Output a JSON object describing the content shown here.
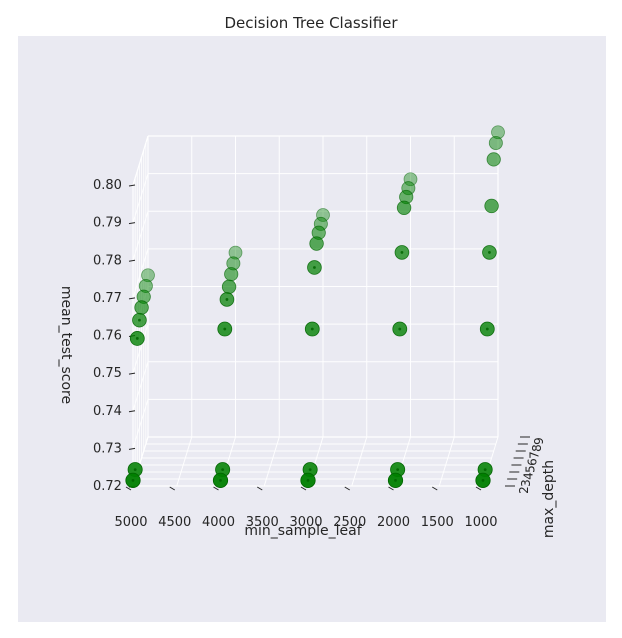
{
  "chart_data": {
    "type": "scatter",
    "title": "Decision Tree Classifier",
    "xlabel": "min_sample_leaf",
    "ylabel": "max_depth",
    "zlabel": "mean_test_score",
    "x_tick_labels": [
      "5000",
      "4500",
      "4000",
      "3500",
      "3000",
      "2500",
      "2000",
      "1500",
      "1000"
    ],
    "y_tick_labels": [
      "2",
      "3",
      "4",
      "5",
      "6",
      "7",
      "8",
      "9"
    ],
    "z_tick_labels": [
      "0.72",
      "0.73",
      "0.74",
      "0.75",
      "0.76",
      "0.77",
      "0.78",
      "0.79",
      "0.80"
    ],
    "xlim": [
      5000,
      1000
    ],
    "ylim": [
      2,
      9
    ],
    "zlim": [
      0.72,
      0.8
    ],
    "grid": true,
    "colors": {
      "pane": "#eaeaf2",
      "grid": "#ffffff",
      "marker": "#008000",
      "marker_dark": "#006400",
      "text": "#262626"
    },
    "series": [
      {
        "points": [
          {
            "x": 5000,
            "y": 2,
            "z": 0.7215
          },
          {
            "x": 5000,
            "y": 3,
            "z": 0.7225
          },
          {
            "x": 5000,
            "y": 4,
            "z": 0.7555
          },
          {
            "x": 5000,
            "y": 5,
            "z": 0.7585
          },
          {
            "x": 5000,
            "y": 6,
            "z": 0.76
          },
          {
            "x": 5000,
            "y": 7,
            "z": 0.761
          },
          {
            "x": 5000,
            "y": 8,
            "z": 0.762
          },
          {
            "x": 5000,
            "y": 9,
            "z": 0.763
          },
          {
            "x": 4000,
            "y": 2,
            "z": 0.7215
          },
          {
            "x": 4000,
            "y": 3,
            "z": 0.7225
          },
          {
            "x": 4000,
            "y": 4,
            "z": 0.758
          },
          {
            "x": 4000,
            "y": 5,
            "z": 0.764
          },
          {
            "x": 4000,
            "y": 6,
            "z": 0.7655
          },
          {
            "x": 4000,
            "y": 7,
            "z": 0.767
          },
          {
            "x": 4000,
            "y": 8,
            "z": 0.768
          },
          {
            "x": 4000,
            "y": 9,
            "z": 0.769
          },
          {
            "x": 3000,
            "y": 2,
            "z": 0.7215
          },
          {
            "x": 3000,
            "y": 3,
            "z": 0.7225
          },
          {
            "x": 3000,
            "y": 4,
            "z": 0.758
          },
          {
            "x": 3000,
            "y": 5,
            "z": 0.7725
          },
          {
            "x": 3000,
            "y": 6,
            "z": 0.777
          },
          {
            "x": 3000,
            "y": 7,
            "z": 0.778
          },
          {
            "x": 3000,
            "y": 8,
            "z": 0.7785
          },
          {
            "x": 3000,
            "y": 9,
            "z": 0.779
          },
          {
            "x": 2000,
            "y": 2,
            "z": 0.7215
          },
          {
            "x": 2000,
            "y": 3,
            "z": 0.7225
          },
          {
            "x": 2000,
            "y": 4,
            "z": 0.758
          },
          {
            "x": 2000,
            "y": 5,
            "z": 0.7765
          },
          {
            "x": 2000,
            "y": 6,
            "z": 0.7865
          },
          {
            "x": 2000,
            "y": 7,
            "z": 0.7875
          },
          {
            "x": 2000,
            "y": 8,
            "z": 0.788
          },
          {
            "x": 2000,
            "y": 9,
            "z": 0.7885
          },
          {
            "x": 1000,
            "y": 2,
            "z": 0.7215
          },
          {
            "x": 1000,
            "y": 3,
            "z": 0.7225
          },
          {
            "x": 1000,
            "y": 4,
            "z": 0.758
          },
          {
            "x": 1000,
            "y": 5,
            "z": 0.7765
          },
          {
            "x": 1000,
            "y": 6,
            "z": 0.787
          },
          {
            "x": 1000,
            "y": 7,
            "z": 0.7975
          },
          {
            "x": 1000,
            "y": 8,
            "z": 0.8
          },
          {
            "x": 1000,
            "y": 9,
            "z": 0.801
          }
        ]
      }
    ]
  }
}
